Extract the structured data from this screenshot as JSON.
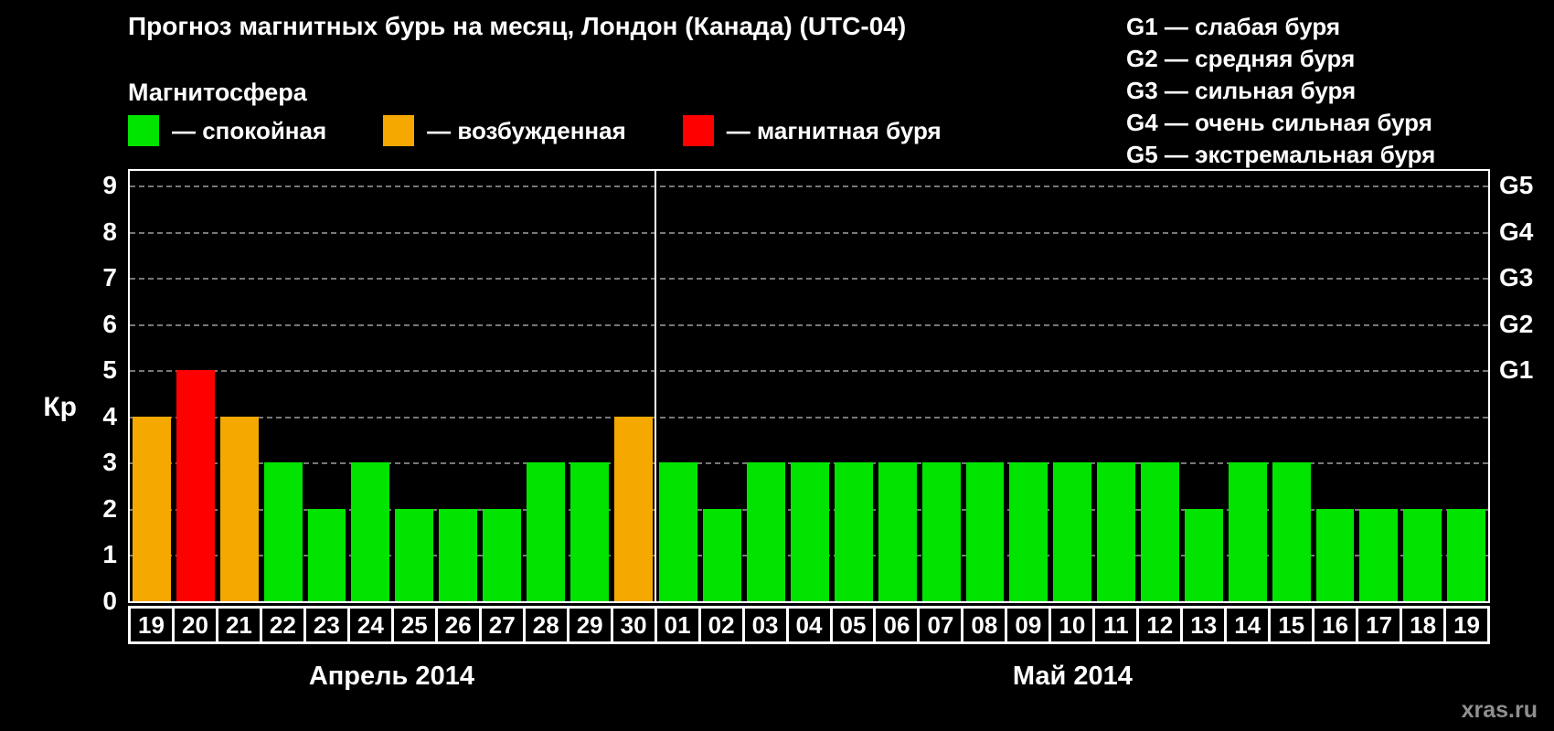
{
  "title": "Прогноз магнитных бурь на месяц, Лондон (Канада) (UTC-04)",
  "legend": {
    "heading": "Магнитосфера",
    "items": [
      {
        "name": "quiet",
        "color": "#00e400",
        "label": "— спокойная"
      },
      {
        "name": "excited",
        "color": "#f5a800",
        "label": "— возбужденная"
      },
      {
        "name": "storm",
        "color": "#ff0000",
        "label": "— магнитная буря"
      }
    ]
  },
  "g_legend": [
    "G1 — слабая буря",
    "G2 — средняя буря",
    "G3 — сильная буря",
    "G4 — очень сильная буря",
    "G5 — экстремальная буря"
  ],
  "watermark": "xras.ru",
  "chart_data": {
    "type": "bar",
    "title": "Прогноз магнитных бурь на месяц, Лондон (Канада) (UTC-04)",
    "ylabel": "Кр",
    "ylim": [
      0,
      9
    ],
    "ymax_display": 9.32,
    "yticks": [
      0,
      1,
      2,
      3,
      4,
      5,
      6,
      7,
      8,
      9
    ],
    "grid": "dashed-horizontal",
    "right_ticks": [
      {
        "label": "G1",
        "value": 5
      },
      {
        "label": "G2",
        "value": 6
      },
      {
        "label": "G3",
        "value": 7
      },
      {
        "label": "G4",
        "value": 8
      },
      {
        "label": "G5",
        "value": 9
      }
    ],
    "colors": {
      "quiet": "#00e400",
      "excited": "#f5a800",
      "storm": "#ff0000"
    },
    "groups": [
      {
        "id": "april",
        "month_label": "Апрель 2014",
        "days": [
          {
            "day": "19",
            "kp": 4,
            "status": "excited"
          },
          {
            "day": "20",
            "kp": 5,
            "status": "storm"
          },
          {
            "day": "21",
            "kp": 4,
            "status": "excited"
          },
          {
            "day": "22",
            "kp": 3,
            "status": "quiet"
          },
          {
            "day": "23",
            "kp": 2,
            "status": "quiet"
          },
          {
            "day": "24",
            "kp": 3,
            "status": "quiet"
          },
          {
            "day": "25",
            "kp": 2,
            "status": "quiet"
          },
          {
            "day": "26",
            "kp": 2,
            "status": "quiet"
          },
          {
            "day": "27",
            "kp": 2,
            "status": "quiet"
          },
          {
            "day": "28",
            "kp": 3,
            "status": "quiet"
          },
          {
            "day": "29",
            "kp": 3,
            "status": "quiet"
          },
          {
            "day": "30",
            "kp": 4,
            "status": "excited"
          }
        ]
      },
      {
        "id": "may",
        "month_label": "Май 2014",
        "days": [
          {
            "day": "01",
            "kp": 3,
            "status": "quiet"
          },
          {
            "day": "02",
            "kp": 2,
            "status": "quiet"
          },
          {
            "day": "03",
            "kp": 3,
            "status": "quiet"
          },
          {
            "day": "04",
            "kp": 3,
            "status": "quiet"
          },
          {
            "day": "05",
            "kp": 3,
            "status": "quiet"
          },
          {
            "day": "06",
            "kp": 3,
            "status": "quiet"
          },
          {
            "day": "07",
            "kp": 3,
            "status": "quiet"
          },
          {
            "day": "08",
            "kp": 3,
            "status": "quiet"
          },
          {
            "day": "09",
            "kp": 3,
            "status": "quiet"
          },
          {
            "day": "10",
            "kp": 3,
            "status": "quiet"
          },
          {
            "day": "11",
            "kp": 3,
            "status": "quiet"
          },
          {
            "day": "12",
            "kp": 3,
            "status": "quiet"
          },
          {
            "day": "13",
            "kp": 2,
            "status": "quiet"
          },
          {
            "day": "14",
            "kp": 3,
            "status": "quiet"
          },
          {
            "day": "15",
            "kp": 3,
            "status": "quiet"
          },
          {
            "day": "16",
            "kp": 2,
            "status": "quiet"
          },
          {
            "day": "17",
            "kp": 2,
            "status": "quiet"
          },
          {
            "day": "18",
            "kp": 2,
            "status": "quiet"
          },
          {
            "day": "19",
            "kp": 2,
            "status": "quiet"
          }
        ]
      }
    ]
  }
}
